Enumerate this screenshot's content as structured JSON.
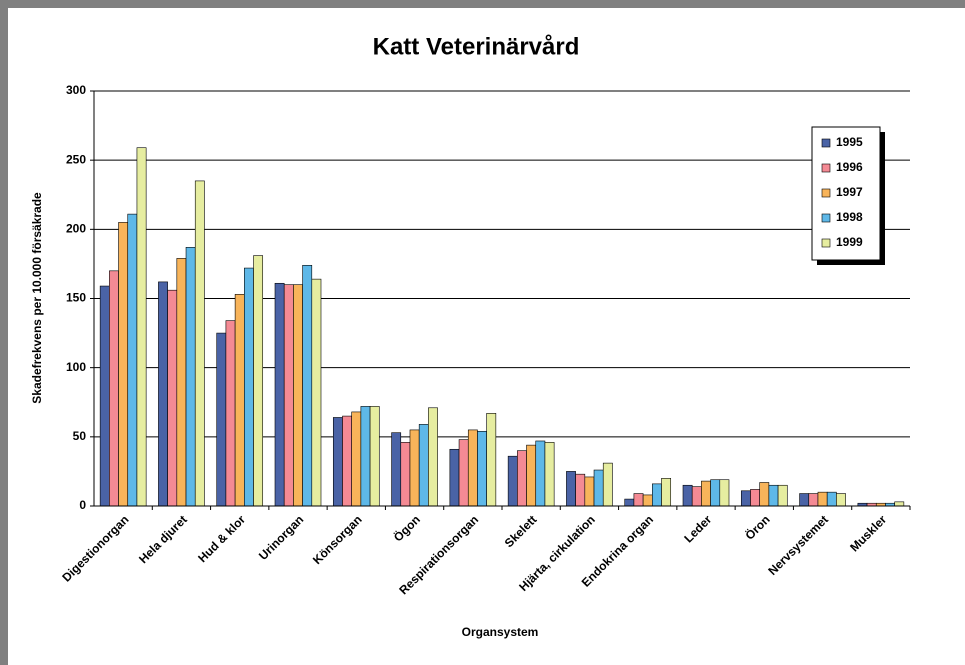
{
  "chart_data": {
    "type": "bar",
    "title": "Katt Veterinärvård",
    "x_label": "Organsystem",
    "y_label": "Skadefrekvens per 10.000 försäkrade",
    "categories": [
      "Digestionorgan",
      "Hela djuret",
      "Hud & klor",
      "Urinorgan",
      "Könsorgan",
      "Ögon",
      "Respirationsorgan",
      "Skelett",
      "Hjärta, cirkulation",
      "Endokrina organ",
      "Leder",
      "Öron",
      "Nervsystemet",
      "Muskler"
    ],
    "series": [
      {
        "name": "1995",
        "color": "#4a63a6",
        "values": [
          159,
          162,
          125,
          161,
          64,
          53,
          41,
          36,
          25,
          5,
          15,
          11,
          9,
          2
        ]
      },
      {
        "name": "1996",
        "color": "#f48a94",
        "values": [
          170,
          156,
          134,
          160,
          65,
          46,
          48,
          40,
          23,
          9,
          14,
          12,
          9,
          2
        ]
      },
      {
        "name": "1997",
        "color": "#f8b45a",
        "values": [
          205,
          179,
          153,
          160,
          68,
          55,
          55,
          44,
          21,
          8,
          18,
          17,
          10,
          2
        ]
      },
      {
        "name": "1998",
        "color": "#5eb8e8",
        "values": [
          211,
          187,
          172,
          174,
          72,
          59,
          54,
          47,
          26,
          16,
          19,
          15,
          10,
          2
        ]
      },
      {
        "name": "1999",
        "color": "#e6eda0",
        "values": [
          259,
          235,
          181,
          164,
          72,
          71,
          67,
          46,
          31,
          20,
          19,
          15,
          9,
          3
        ]
      }
    ],
    "ylim": [
      0,
      300
    ],
    "yticks": [
      0,
      50,
      100,
      150,
      200,
      250,
      300
    ],
    "grid": true,
    "legend": "upper right"
  }
}
